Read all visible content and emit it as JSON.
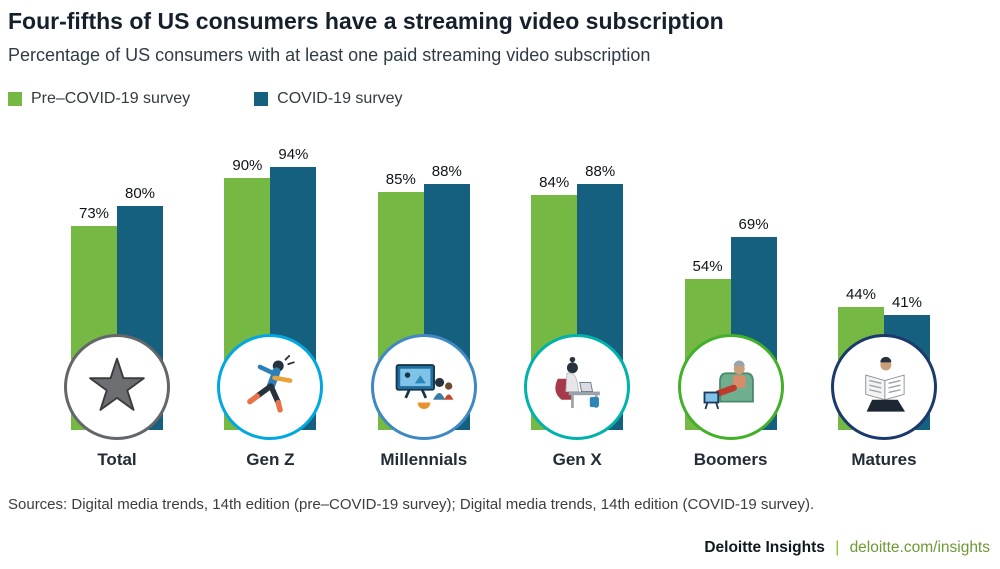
{
  "title": "Four-fifths of US consumers have a streaming video subscription",
  "subtitle": "Percentage of US consumers with at least one paid streaming video subscription",
  "legend": [
    {
      "label": "Pre–COVID-19 survey",
      "color": "#75b843"
    },
    {
      "label": "COVID-19 survey",
      "color": "#15607e"
    }
  ],
  "chart_data": {
    "type": "bar",
    "categories": [
      "Total",
      "Gen Z",
      "Millennials",
      "Gen X",
      "Boomers",
      "Matures"
    ],
    "series": [
      {
        "name": "Pre–COVID-19 survey",
        "color": "#75b843",
        "values": [
          73,
          90,
          85,
          84,
          54,
          44
        ]
      },
      {
        "name": "COVID-19 survey",
        "color": "#15607e",
        "values": [
          80,
          94,
          88,
          88,
          69,
          41
        ]
      }
    ],
    "value_suffix": "%",
    "ylim": [
      0,
      100
    ],
    "grid": false,
    "legend_position": "top-left",
    "icons": [
      {
        "name": "star-icon",
        "ring": "#63666a"
      },
      {
        "name": "dancing-person-icon",
        "ring": "#00a7e1"
      },
      {
        "name": "family-watching-tv-icon",
        "ring": "#3f88c5"
      },
      {
        "name": "person-with-laptop-icon",
        "ring": "#00b2a9"
      },
      {
        "name": "person-in-armchair-icon",
        "ring": "#43b02a"
      },
      {
        "name": "person-reading-newspaper-icon",
        "ring": "#1b3a6b"
      }
    ]
  },
  "footer": {
    "sources": "Sources: Digital media trends, 14th edition (pre–COVID-19 survey); Digital media trends, 14th edition (COVID-19 survey).",
    "brand": "Deloitte Insights",
    "divider": "|",
    "link": "deloitte.com/insights"
  }
}
